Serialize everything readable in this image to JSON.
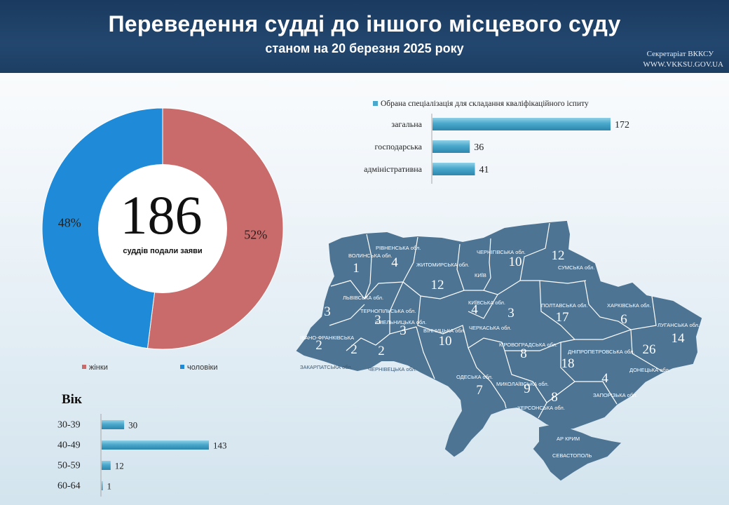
{
  "header": {
    "title": "Переведення судді до іншого місцевого суду",
    "subtitle": "станом на 20 березня 2025 року",
    "credit_org": "Секретаріат ВККСУ",
    "credit_site": "WWW.VKKSU.GOV.UA"
  },
  "donut": {
    "total": "186",
    "caption": "суддів подали заяви",
    "legend": [
      {
        "label": "жінки",
        "color": "#c96b6b"
      },
      {
        "label": "чоловіки",
        "color": "#1f8ad8"
      }
    ]
  },
  "map": {
    "regions": [
      {
        "name": "ВОЛИНСЬКА обл.",
        "value": 1
      },
      {
        "name": "РІВНЕНСЬКА обл.",
        "value": 4
      },
      {
        "name": "ЖИТОМИРСЬКА обл.",
        "value": 12
      },
      {
        "name": "КИЇВ",
        "value": null
      },
      {
        "name": "ЧЕРНІГІВСЬКА обл.",
        "value": 10
      },
      {
        "name": "СУМСЬКА обл.",
        "value": 12
      },
      {
        "name": "ЛЬВІВСЬКА обл.",
        "value": 3
      },
      {
        "name": "ТЕРНОПІЛЬСЬКА обл.",
        "value": 3
      },
      {
        "name": "ХМЕЛЬНИЦЬКА обл.",
        "value": 3
      },
      {
        "name": "КИЇВСЬКА обл.",
        "value": 4
      },
      {
        "name": "ЧЕРКАСЬКА обл.",
        "value": 3
      },
      {
        "name": "ПОЛТАВСЬКА обл.",
        "value": 17
      },
      {
        "name": "ХАРКІВСЬКА обл.",
        "value": 6
      },
      {
        "name": "ЛУГАНСЬКА обл.",
        "value": 14
      },
      {
        "name": "ІВАНО-ФРАНКІВСЬКА",
        "value": 2
      },
      {
        "name": "ЗАКАРПАТСЬКА обл.",
        "value": 2
      },
      {
        "name": "ЧЕРНІВЕЦЬКА обл.",
        "value": 2
      },
      {
        "name": "ВІННИЦЬКА обл.",
        "value": 10
      },
      {
        "name": "КІРОВОГРАДСЬКА обл.",
        "value": 8
      },
      {
        "name": "ДНІПРОПЕТРОВСЬКА обл.",
        "value": 18
      },
      {
        "name": "ДОНЕЦЬКА обл.",
        "value": 26
      },
      {
        "name": "ОДЕСЬКА обл.",
        "value": 7
      },
      {
        "name": "МИКОЛАЇВСЬКА обл.",
        "value": 9
      },
      {
        "name": "ХЕРСОНСЬКА обл.",
        "value": 8
      },
      {
        "name": "ЗАПОРІЗЬКА обл.",
        "value": 4
      },
      {
        "name": "АР КРИМ",
        "value": null
      },
      {
        "name": "СЕВАСТОПОЛЬ",
        "value": null
      }
    ],
    "fill": "#4e7493",
    "stroke": "#ffffff"
  },
  "chart_data": [
    {
      "type": "pie",
      "categories": [
        "жінки",
        "чоловіки"
      ],
      "values": [
        52,
        48
      ],
      "labels": [
        "52%",
        "48%"
      ],
      "colors": [
        "#c96b6b",
        "#1f8ad8"
      ],
      "legend": "bottom"
    },
    {
      "type": "bar",
      "title": "",
      "legend": [
        "Обрана спеціалізація  для  складання  кваліфікаційного  іспиту"
      ],
      "categories": [
        "загальна",
        "господарська",
        "адміністративна"
      ],
      "values": [
        172,
        36,
        41
      ],
      "orientation": "horizontal",
      "color": "#5aa9c9"
    },
    {
      "type": "bar",
      "title": "Вік",
      "categories": [
        "30-39",
        "40-49",
        "50-59",
        "60-64"
      ],
      "values": [
        30,
        143,
        12,
        1
      ],
      "orientation": "horizontal",
      "color": "#5aa9c9"
    }
  ]
}
